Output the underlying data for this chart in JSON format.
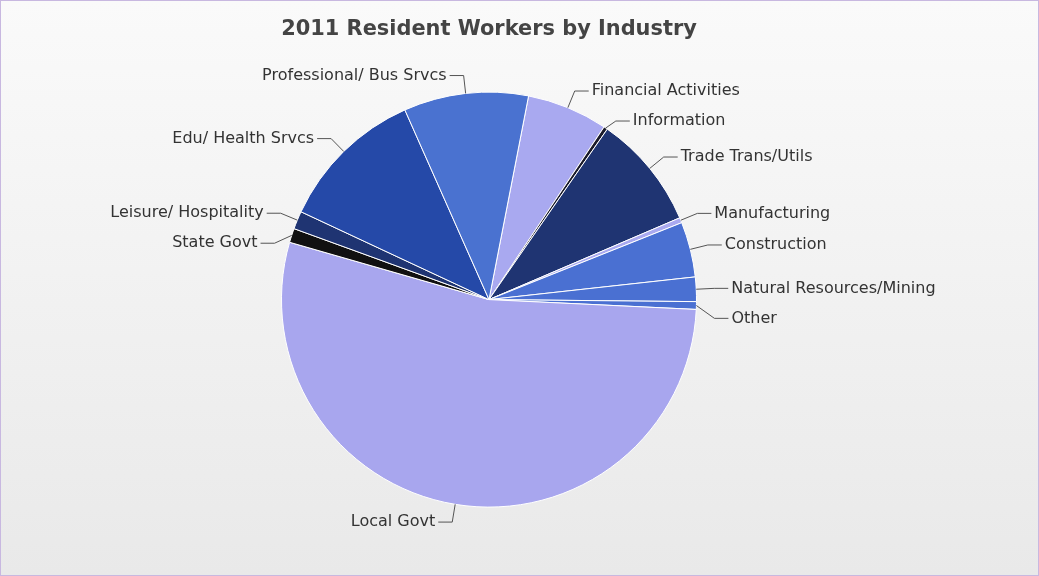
{
  "chart_data": {
    "type": "pie",
    "title": "2011 Resident Workers by Industry",
    "categories": [
      "Financial Activities",
      "Information",
      "Trade Trans/Utils",
      "Manufacturing",
      "Construction",
      "Natural Resources/Mining",
      "Other",
      "Local Govt",
      "State Govt",
      "Leisure/ Hospitality",
      "Edu/ Health Srvcs",
      "Professional/ Bus Srvcs"
    ],
    "values": [
      6.3,
      0.3,
      8.9,
      0.4,
      4.3,
      1.9,
      0.6,
      53.7,
      1.1,
      1.4,
      11.4,
      9.7
    ],
    "colors": [
      "#a9a9f0",
      "#1a1a2a",
      "#1f3472",
      "#a9a9f0",
      "#4a70d2",
      "#4a70d2",
      "#4a70d2",
      "#a8a6ee",
      "#111111",
      "#1f3472",
      "#2549a8",
      "#4a72d0"
    ],
    "legend": false
  }
}
